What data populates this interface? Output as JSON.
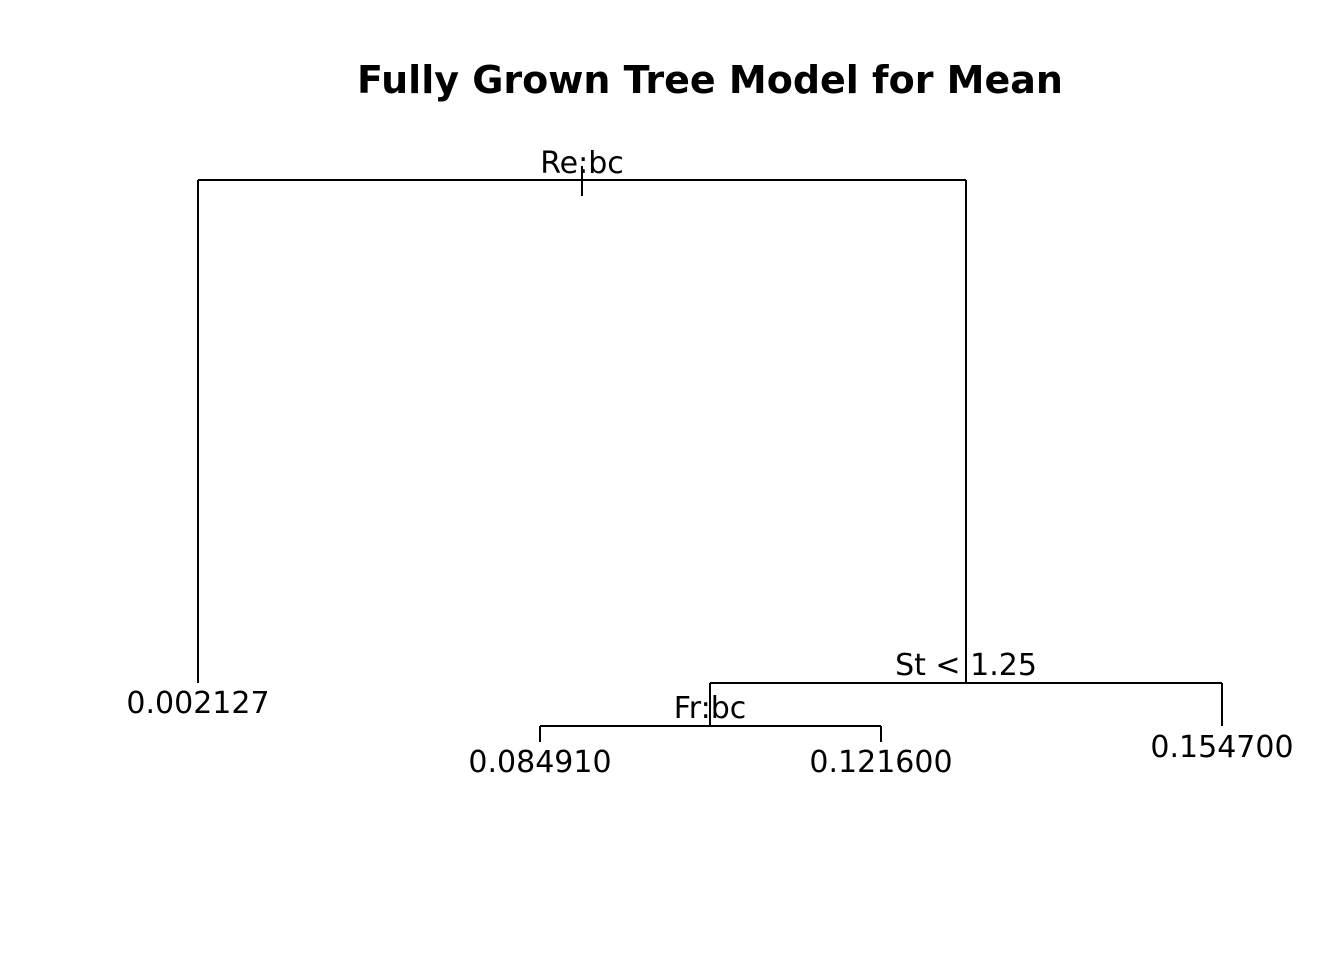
{
  "title": "Fully Grown Tree Model for Mean",
  "tree": {
    "root": {
      "split": "Re:bc",
      "left": {
        "leaf": "0.002127"
      },
      "right": {
        "split": "St < 1.25",
        "left": {
          "split": "Fr:bc",
          "left": {
            "leaf": "0.084910"
          },
          "right": {
            "leaf": "0.121600"
          }
        },
        "right": {
          "leaf": "0.154700"
        }
      }
    }
  },
  "colors": {
    "line": "#000000",
    "text": "#000000",
    "background": "#ffffff"
  }
}
